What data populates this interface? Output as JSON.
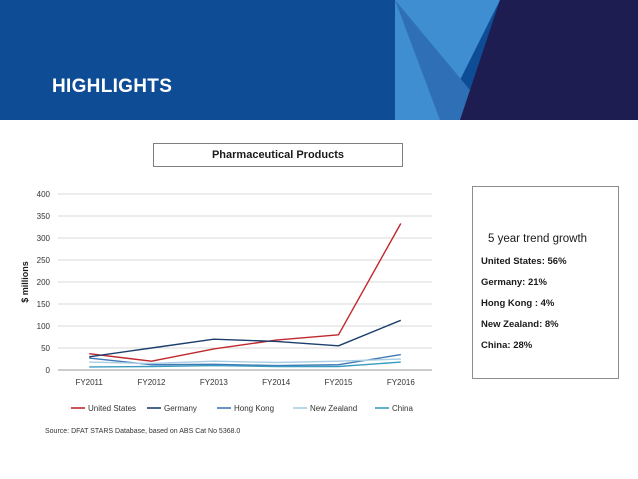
{
  "header": {
    "title": "HIGHLIGHTS"
  },
  "colors": {
    "banner_blue": "#0e4c96",
    "banner_dark": "#1d1d52",
    "banner_light": "#3f8ed1",
    "banner_mid": "#2f6fb5"
  },
  "chart_data": {
    "type": "line",
    "title": "Pharmaceutical Products",
    "xlabel": "",
    "ylabel": "$ millions",
    "categories": [
      "FY2011",
      "FY2012",
      "FY2013",
      "FY2014",
      "FY2015",
      "FY2016"
    ],
    "ylim": [
      0,
      400
    ],
    "yticks": [
      0,
      50,
      100,
      150,
      200,
      250,
      300,
      350,
      400
    ],
    "grid": true,
    "legend_position": "bottom",
    "series": [
      {
        "name": "United States",
        "color": "#c0282d",
        "values": [
          37,
          20,
          48,
          68,
          80,
          333
        ]
      },
      {
        "name": "Germany",
        "color": "#1c3f6e",
        "values": [
          30,
          50,
          70,
          65,
          55,
          113
        ]
      },
      {
        "name": "Hong Kong",
        "color": "#3f78b5",
        "values": [
          27,
          12,
          13,
          10,
          12,
          35
        ]
      },
      {
        "name": "New Zealand",
        "color": "#a9cde3",
        "values": [
          18,
          15,
          20,
          17,
          20,
          25
        ]
      },
      {
        "name": "China",
        "color": "#3a9cc0",
        "values": [
          7,
          8,
          10,
          8,
          8,
          18
        ]
      }
    ]
  },
  "trend": {
    "title": "5 year trend growth",
    "items": [
      "United States: 56%",
      "Germany: 21%",
      "Hong Kong : 4%",
      "New Zealand: 8%",
      "China: 28%"
    ]
  },
  "footer": {
    "source": "Source:  DFAT STARS Database, based on ABS Cat No 5368.0"
  }
}
